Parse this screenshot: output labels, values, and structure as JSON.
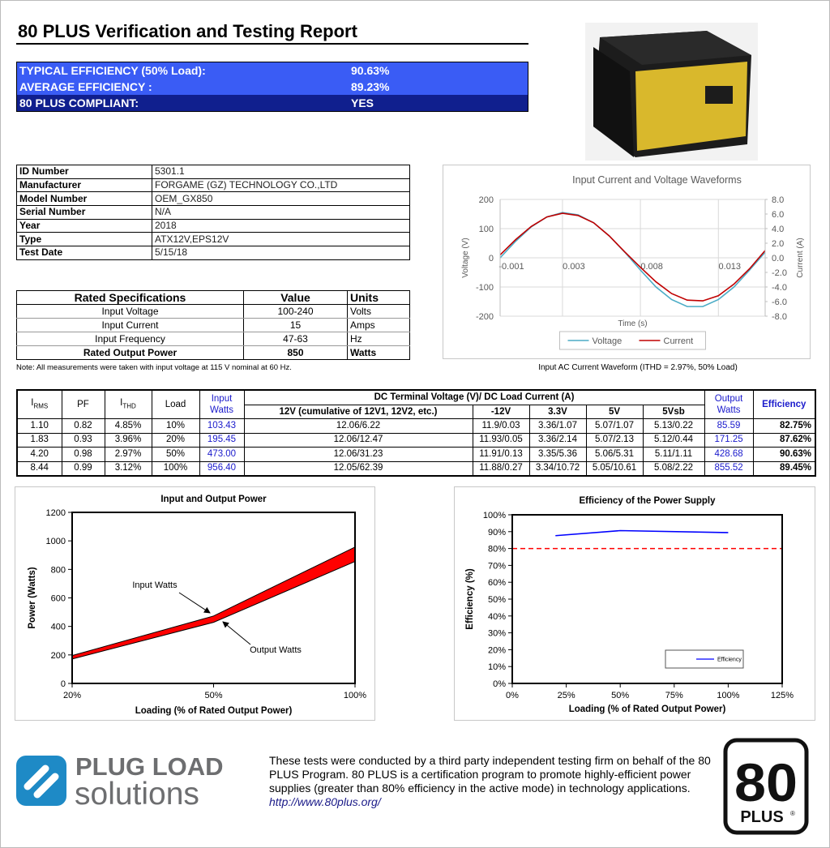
{
  "header": {
    "title": "80 PLUS Verification and Testing Report"
  },
  "summary": {
    "rows": [
      [
        "TYPICAL EFFICIENCY (50% Load):",
        "90.63%"
      ],
      [
        "AVERAGE EFFICIENCY :",
        "89.23%"
      ],
      [
        "80 PLUS COMPLIANT:",
        "YES"
      ]
    ]
  },
  "info_table": {
    "rows": [
      [
        "ID Number",
        "5301.1"
      ],
      [
        "Manufacturer",
        "FORGAME (GZ) TECHNOLOGY CO.,LTD"
      ],
      [
        "Model Number",
        "OEM_GX850"
      ],
      [
        "Serial Number",
        "N/A"
      ],
      [
        "Year",
        "2018"
      ],
      [
        "Type",
        "ATX12V,EPS12V"
      ],
      [
        "Test Date",
        "5/15/18"
      ]
    ]
  },
  "specs_table": {
    "header": [
      "Rated Specifications",
      "Value",
      "Units"
    ],
    "rows": [
      [
        "Input Voltage",
        "100-240",
        "Volts"
      ],
      [
        "Input Current",
        "15",
        "Amps"
      ],
      [
        "Input Frequency",
        "47-63",
        "Hz"
      ],
      [
        "Rated Output Power",
        "850",
        "Watts"
      ]
    ]
  },
  "note": "Note: All measurements were taken with input voltage at 115 V nominal at 60 Hz.",
  "waveform_caption": "Input AC Current Waveform (ITHD = 2.97%, 50% Load)",
  "results_table": {
    "header": {
      "irms": {
        "main": "I",
        "sub": "RMS"
      },
      "pf": "PF",
      "ithd": {
        "main": "I",
        "sub": "THD"
      },
      "load": "Load",
      "input_watts": "Input Watts",
      "dc_group": "DC Terminal Voltage (V)/ DC Load Current (A)",
      "dc_columns": [
        "12V (cumulative of 12V1, 12V2, etc.)",
        "-12V",
        "3.3V",
        "5V",
        "5Vsb"
      ],
      "output_watts": "Output Watts",
      "efficiency": "Efficiency"
    },
    "rows": [
      [
        "1.10",
        "0.82",
        "4.85%",
        "10%",
        "103.43",
        "12.06/6.22",
        "11.9/0.03",
        "3.36/1.07",
        "5.07/1.07",
        "5.13/0.22",
        "85.59",
        "82.75%"
      ],
      [
        "1.83",
        "0.93",
        "3.96%",
        "20%",
        "195.45",
        "12.06/12.47",
        "11.93/0.05",
        "3.36/2.14",
        "5.07/2.13",
        "5.12/0.44",
        "171.25",
        "87.62%"
      ],
      [
        "4.20",
        "0.98",
        "2.97%",
        "50%",
        "473.00",
        "12.06/31.23",
        "11.91/0.13",
        "3.35/5.36",
        "5.06/5.31",
        "5.11/1.11",
        "428.68",
        "90.63%"
      ],
      [
        "8.44",
        "0.99",
        "3.12%",
        "100%",
        "956.40",
        "12.05/62.39",
        "11.88/0.27",
        "3.34/10.72",
        "5.05/10.61",
        "5.08/2.22",
        "855.52",
        "89.45%"
      ]
    ]
  },
  "chart_data": [
    {
      "type": "line",
      "title": "Input Current and Voltage Waveforms",
      "x_label": "Time (s)",
      "y_label": "Voltage (V)",
      "y2_label": "Current (A)",
      "x": [
        -0.001,
        0,
        0.001,
        0.002,
        0.003,
        0.004,
        0.005,
        0.006,
        0.007,
        0.008,
        0.009,
        0.01,
        0.011,
        0.012,
        0.013,
        0.014,
        0.015,
        0.016
      ],
      "series": [
        {
          "name": "Voltage",
          "color": "#4bacc6",
          "values": [
            0,
            57,
            106,
            140,
            155,
            147,
            120,
            75,
            19,
            -42,
            -100,
            -143,
            -167,
            -167,
            -143,
            -100,
            -42,
            19
          ]
        },
        {
          "name": "Current",
          "color": "#c00000",
          "axis": "y2",
          "values": [
            0.4,
            2.5,
            4.3,
            5.6,
            6.1,
            5.8,
            4.8,
            3.0,
            0.8,
            -1.3,
            -3.3,
            -4.9,
            -5.8,
            -5.9,
            -5.2,
            -3.6,
            -1.5,
            1.0
          ]
        }
      ],
      "xlim": [
        -0.001,
        0.016
      ],
      "xticks": [
        -0.001,
        0.003,
        0.008,
        0.013
      ],
      "ylim": [
        -200,
        200
      ],
      "yticks": [
        -200,
        -100,
        0,
        100,
        200
      ],
      "y2lim": [
        -8,
        8
      ],
      "y2ticks": [
        {
          "value": -8,
          "label": "-8.0"
        },
        {
          "value": -6,
          "label": "-6.0"
        },
        {
          "value": -4,
          "label": "-4.0"
        },
        {
          "value": -2,
          "label": "-2.0"
        },
        {
          "value": 0,
          "label": "0.0"
        },
        {
          "value": 2,
          "label": "2.0"
        },
        {
          "value": 4,
          "label": "4.0"
        },
        {
          "value": 6,
          "label": "6.0"
        },
        {
          "value": 8,
          "label": "8.0"
        }
      ],
      "grid": true,
      "legend": "bottom"
    },
    {
      "type": "band",
      "title": "Input and Output Power",
      "x_label": "Loading (% of Rated Output Power)",
      "y_label": "Power (Watts)",
      "categories": [
        "20%",
        "50%",
        "100%"
      ],
      "series": [
        {
          "name": "Input Watts",
          "color": "#000000",
          "values": [
            195.45,
            473.0,
            956.4
          ]
        },
        {
          "name": "Output Watts",
          "color": "#000000",
          "values": [
            171.25,
            428.68,
            855.52
          ]
        }
      ],
      "fill": "#ff0000",
      "ylim": [
        0,
        1200
      ],
      "yticks": [
        0,
        200,
        400,
        600,
        800,
        1000,
        1200
      ],
      "grid": false
    },
    {
      "type": "line",
      "title": "Efficiency of the Power Supply",
      "x_label": "Loading (% of Rated Output Power)",
      "y_label": "Efficiency (%)",
      "x": [
        20,
        50,
        100
      ],
      "series": [
        {
          "name": "Efficiency",
          "color": "#0000ff",
          "values": [
            87.62,
            90.63,
            89.45
          ]
        }
      ],
      "xlim": [
        0,
        125
      ],
      "xticks": [
        {
          "value": 0,
          "label": "0%"
        },
        {
          "value": 25,
          "label": "25%"
        },
        {
          "value": 50,
          "label": "50%"
        },
        {
          "value": 75,
          "label": "75%"
        },
        {
          "value": 100,
          "label": "100%"
        },
        {
          "value": 125,
          "label": "125%"
        }
      ],
      "ylim": [
        0,
        100
      ],
      "yticks": [
        {
          "value": 0,
          "label": "0%"
        },
        {
          "value": 10,
          "label": "10%"
        },
        {
          "value": 20,
          "label": "20%"
        },
        {
          "value": 30,
          "label": "30%"
        },
        {
          "value": 40,
          "label": "40%"
        },
        {
          "value": 50,
          "label": "50%"
        },
        {
          "value": 60,
          "label": "60%"
        },
        {
          "value": 70,
          "label": "70%"
        },
        {
          "value": 80,
          "label": "80%"
        },
        {
          "value": 90,
          "label": "90%"
        },
        {
          "value": 100,
          "label": "100%"
        }
      ],
      "threshold": 80,
      "threshold_color": "#ff0000",
      "grid": false,
      "legend": "lower right"
    }
  ],
  "footer": {
    "logo_line1": "PLUG LOAD",
    "logo_line2": "solutions",
    "text": "These tests were conducted by a third party independent testing firm on behalf of the 80 PLUS Program. 80 PLUS is a certification program to promote highly-efficient power supplies (greater than 80% efficiency in the active mode) in technology applications.",
    "link": "http://www.80plus.org/",
    "badge_number": "80",
    "badge_text": "PLUS",
    "badge_mark": "®"
  }
}
